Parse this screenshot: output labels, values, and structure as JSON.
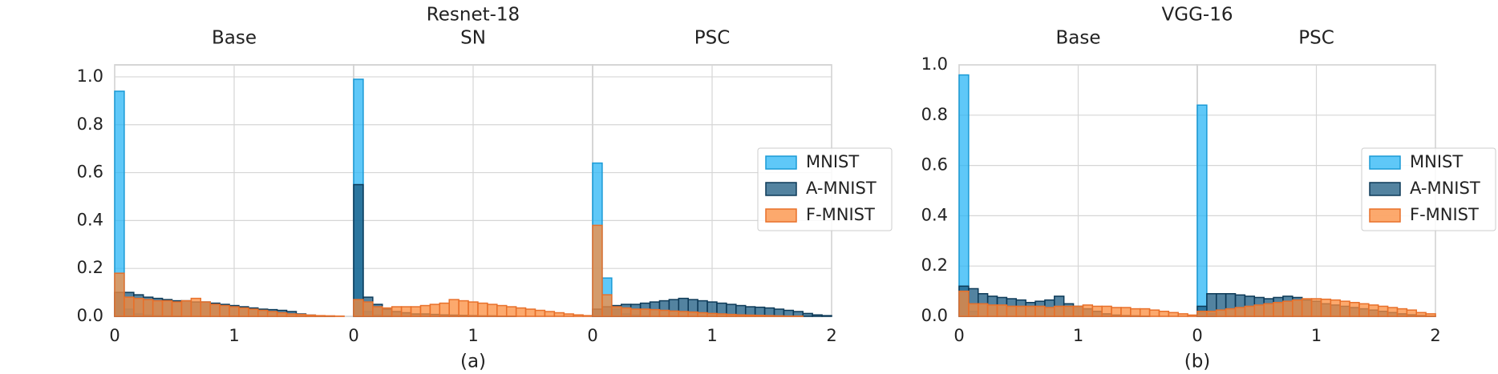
{
  "chart_data": [
    {
      "type": "histogram",
      "title": "Resnet-18",
      "caption": "(a)",
      "xlim": [
        0,
        2
      ],
      "ylim": [
        0,
        1.05
      ],
      "yticks": [
        {
          "value": 0,
          "label": "0.0"
        },
        {
          "value": 0.2,
          "label": "0.2"
        },
        {
          "value": 0.4,
          "label": "0.4"
        },
        {
          "value": 0.6,
          "label": "0.6"
        },
        {
          "value": 0.8,
          "label": "0.8"
        },
        {
          "value": 1.0,
          "label": "1.0"
        }
      ],
      "grid": true,
      "legend": "right",
      "bins": [
        0,
        0.08,
        0.16,
        0.24,
        0.32,
        0.4,
        0.48,
        0.56,
        0.64,
        0.72,
        0.8,
        0.88,
        0.96,
        1.04,
        1.12,
        1.2,
        1.28,
        1.36,
        1.44,
        1.52,
        1.6,
        1.68,
        1.76,
        1.84,
        1.92,
        2
      ],
      "series": [
        {
          "name": "MNIST",
          "color": "#29b6f6",
          "edge": "#1a9ad6"
        },
        {
          "name": "A-MNIST",
          "color": "#1a5a80",
          "edge": "#0d3a58"
        },
        {
          "name": "F-MNIST",
          "color": "#fb8c3c",
          "edge": "#e8702a"
        }
      ],
      "panels": [
        {
          "title": "Base",
          "xticks": [
            0,
            1
          ],
          "values": [
            [
              0.94,
              0.03,
              0.01,
              0.005,
              0.003,
              0.002,
              0.001,
              0,
              0,
              0,
              0,
              0,
              0,
              0,
              0,
              0,
              0,
              0,
              0,
              0,
              0,
              0,
              0,
              0,
              0
            ],
            [
              0.1,
              0.1,
              0.09,
              0.08,
              0.075,
              0.07,
              0.065,
              0.065,
              0.06,
              0.06,
              0.055,
              0.05,
              0.045,
              0.04,
              0.035,
              0.03,
              0.028,
              0.025,
              0.02,
              0.01,
              0.005,
              0.002,
              0.001,
              0,
              0
            ],
            [
              0.18,
              0.08,
              0.075,
              0.07,
              0.065,
              0.065,
              0.06,
              0.065,
              0.075,
              0.06,
              0.05,
              0.045,
              0.04,
              0.035,
              0.03,
              0.025,
              0.02,
              0.015,
              0.01,
              0.008,
              0.005,
              0.003,
              0.002,
              0.001,
              0
            ]
          ]
        },
        {
          "title": "SN",
          "xticks": [
            0,
            1
          ],
          "values": [
            [
              0.99,
              0.02,
              0.005,
              0.002,
              0,
              0,
              0,
              0,
              0,
              0,
              0,
              0,
              0,
              0,
              0,
              0,
              0,
              0,
              0,
              0,
              0,
              0,
              0,
              0,
              0
            ],
            [
              0.55,
              0.08,
              0.05,
              0.03,
              0.02,
              0.015,
              0.01,
              0.01,
              0.008,
              0.006,
              0.005,
              0.004,
              0.003,
              0.002,
              0.002,
              0.001,
              0.001,
              0,
              0,
              0,
              0,
              0,
              0,
              0,
              0
            ],
            [
              0.07,
              0.06,
              0.04,
              0.035,
              0.04,
              0.04,
              0.04,
              0.045,
              0.05,
              0.055,
              0.07,
              0.065,
              0.06,
              0.055,
              0.05,
              0.045,
              0.04,
              0.035,
              0.03,
              0.025,
              0.02,
              0.015,
              0.01,
              0.006,
              0.003
            ]
          ]
        },
        {
          "title": "PSC",
          "xticks": [
            0,
            1,
            2
          ],
          "values": [
            [
              0.64,
              0.16,
              0.03,
              0.01,
              0.005,
              0.002,
              0,
              0,
              0,
              0,
              0,
              0,
              0,
              0,
              0,
              0,
              0,
              0,
              0,
              0,
              0,
              0,
              0,
              0,
              0
            ],
            [
              0.03,
              0.04,
              0.045,
              0.05,
              0.05,
              0.055,
              0.06,
              0.065,
              0.07,
              0.075,
              0.07,
              0.065,
              0.06,
              0.055,
              0.05,
              0.045,
              0.04,
              0.038,
              0.035,
              0.03,
              0.025,
              0.02,
              0.012,
              0.006,
              0.003
            ],
            [
              0.38,
              0.09,
              0.04,
              0.035,
              0.03,
              0.03,
              0.028,
              0.025,
              0.022,
              0.02,
              0.018,
              0.015,
              0.012,
              0.01,
              0.008,
              0.006,
              0.005,
              0.004,
              0.003,
              0.002,
              0.001,
              0.001,
              0,
              0,
              0
            ]
          ]
        }
      ]
    },
    {
      "type": "histogram",
      "title": "VGG-16",
      "caption": "(b)",
      "xlim": [
        0,
        2
      ],
      "ylim": [
        0,
        1.0
      ],
      "yticks": [
        {
          "value": 0,
          "label": "0.0"
        },
        {
          "value": 0.2,
          "label": "0.2"
        },
        {
          "value": 0.4,
          "label": "0.4"
        },
        {
          "value": 0.6,
          "label": "0.6"
        },
        {
          "value": 0.8,
          "label": "0.8"
        },
        {
          "value": 1.0,
          "label": "1.0"
        }
      ],
      "grid": true,
      "legend": "right",
      "bins": [
        0,
        0.08,
        0.16,
        0.24,
        0.32,
        0.4,
        0.48,
        0.56,
        0.64,
        0.72,
        0.8,
        0.88,
        0.96,
        1.04,
        1.12,
        1.2,
        1.28,
        1.36,
        1.44,
        1.52,
        1.6,
        1.68,
        1.76,
        1.84,
        1.92,
        2
      ],
      "series": [
        {
          "name": "MNIST",
          "color": "#29b6f6",
          "edge": "#1a9ad6"
        },
        {
          "name": "A-MNIST",
          "color": "#1a5a80",
          "edge": "#0d3a58"
        },
        {
          "name": "F-MNIST",
          "color": "#fb8c3c",
          "edge": "#e8702a"
        }
      ],
      "panels": [
        {
          "title": "Base",
          "xticks": [
            0,
            1
          ],
          "values": [
            [
              0.96,
              0.02,
              0,
              0,
              0,
              0,
              0,
              0,
              0,
              0,
              0,
              0,
              0,
              0,
              0,
              0,
              0,
              0,
              0,
              0,
              0,
              0,
              0,
              0,
              0
            ],
            [
              0.12,
              0.11,
              0.09,
              0.08,
              0.075,
              0.07,
              0.065,
              0.055,
              0.06,
              0.065,
              0.08,
              0.05,
              0.04,
              0.03,
              0.02,
              0.01,
              0.005,
              0.003,
              0.002,
              0.001,
              0,
              0,
              0,
              0,
              0
            ],
            [
              0.1,
              0.05,
              0.05,
              0.045,
              0.045,
              0.04,
              0.04,
              0.04,
              0.04,
              0.035,
              0.04,
              0.04,
              0.04,
              0.045,
              0.04,
              0.04,
              0.035,
              0.035,
              0.03,
              0.03,
              0.025,
              0.02,
              0.015,
              0.01,
              0.005
            ]
          ]
        },
        {
          "title": "PSC",
          "xticks": [
            0,
            1,
            2
          ],
          "values": [
            [
              0.84,
              0.01,
              0,
              0,
              0,
              0,
              0,
              0,
              0,
              0,
              0,
              0,
              0,
              0,
              0,
              0,
              0,
              0,
              0,
              0,
              0,
              0,
              0,
              0,
              0
            ],
            [
              0.04,
              0.09,
              0.09,
              0.09,
              0.085,
              0.08,
              0.075,
              0.07,
              0.075,
              0.08,
              0.075,
              0.065,
              0.06,
              0.05,
              0.045,
              0.04,
              0.035,
              0.03,
              0.025,
              0.02,
              0.015,
              0.01,
              0.006,
              0.003,
              0.001
            ],
            [
              0.02,
              0.02,
              0.025,
              0.03,
              0.035,
              0.04,
              0.045,
              0.05,
              0.055,
              0.06,
              0.065,
              0.07,
              0.07,
              0.068,
              0.065,
              0.06,
              0.055,
              0.05,
              0.045,
              0.04,
              0.035,
              0.03,
              0.025,
              0.015,
              0.01
            ]
          ]
        }
      ]
    }
  ]
}
